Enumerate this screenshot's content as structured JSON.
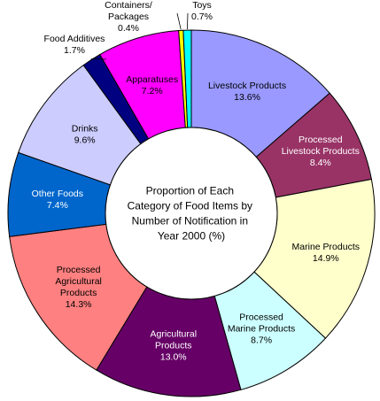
{
  "chart_data": {
    "type": "donut",
    "title_lines": [
      "Proportion of Each",
      "Category of Food Items by",
      "Number of Notification in",
      "Year 2000 (%)"
    ],
    "slices": [
      {
        "label_lines": [
          "Livestock Products"
        ],
        "value": 13.6,
        "value_text": "13.6%",
        "color": "#9999ff"
      },
      {
        "label_lines": [
          "Processed",
          "Livestock Products"
        ],
        "value": 8.4,
        "value_text": "8.4%",
        "color": "#993366"
      },
      {
        "label_lines": [
          "Marine Products"
        ],
        "value": 14.9,
        "value_text": "14.9%",
        "color": "#ffffcc"
      },
      {
        "label_lines": [
          "Processed",
          "Marine Products"
        ],
        "value": 8.7,
        "value_text": "8.7%",
        "color": "#ccffff"
      },
      {
        "label_lines": [
          "Agricultural",
          "Products"
        ],
        "value": 13.0,
        "value_text": "13.0%",
        "color": "#660066"
      },
      {
        "label_lines": [
          "Processed",
          "Agricultural",
          "Products"
        ],
        "value": 14.3,
        "value_text": "14.3%",
        "color": "#ff8080"
      },
      {
        "label_lines": [
          "Other Foods"
        ],
        "value": 7.4,
        "value_text": "7.4%",
        "color": "#0066cc"
      },
      {
        "label_lines": [
          "Drinks"
        ],
        "value": 9.6,
        "value_text": "9.6%",
        "color": "#ccccff"
      },
      {
        "label_lines": [
          "Food Additives"
        ],
        "value": 1.7,
        "value_text": "1.7%",
        "color": "#000080"
      },
      {
        "label_lines": [
          "Apparatuses"
        ],
        "value": 7.2,
        "value_text": "7.2%",
        "color": "#ff00ff"
      },
      {
        "label_lines": [
          "Containers/",
          "Packages"
        ],
        "value": 0.4,
        "value_text": "0.4%",
        "color": "#ffff00"
      },
      {
        "label_lines": [
          "Toys"
        ],
        "value": 0.7,
        "value_text": "0.7%",
        "color": "#00ffff"
      }
    ]
  }
}
